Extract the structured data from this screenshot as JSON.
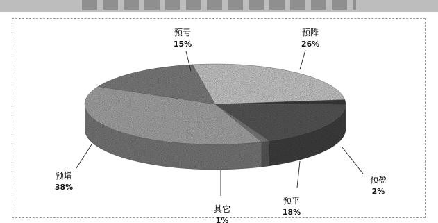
{
  "header": {
    "title": ""
  },
  "chart_data": {
    "type": "pie",
    "style": "3d",
    "title": "",
    "slices": [
      {
        "label": "预降",
        "value": 26,
        "value_label": "26%",
        "color": "#c9c9c9"
      },
      {
        "label": "预盈",
        "value": 2,
        "value_label": "2%",
        "color": "#3c3c3c"
      },
      {
        "label": "预平",
        "value": 18,
        "value_label": "18%",
        "color": "#575757"
      },
      {
        "label": "其它",
        "value": 1,
        "value_label": "1%",
        "color": "#7a7a7a"
      },
      {
        "label": "预增",
        "value": 38,
        "value_label": "38%",
        "color": "#a6a6a6"
      },
      {
        "label": "预亏",
        "value": 15,
        "value_label": "15%",
        "color": "#7e7e7e"
      }
    ]
  }
}
